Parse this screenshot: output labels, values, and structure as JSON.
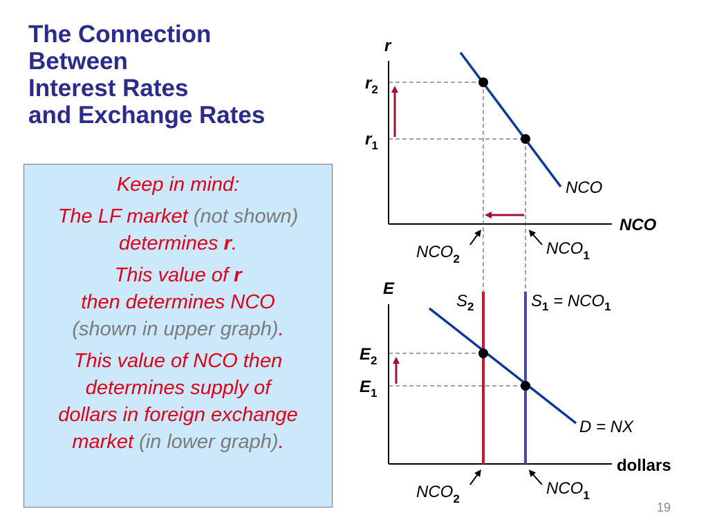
{
  "title": {
    "line1": "The Connection",
    "line2": "Between",
    "line3": "Interest Rates",
    "line4": "and Exchange Rates"
  },
  "note": {
    "heading": "Keep in mind:",
    "p1_a": "The LF market",
    "p1_b": "(not shown)",
    "p1_c": "determines",
    "p1_r": "r",
    "p1_dot": ".",
    "p2_a": "This value of",
    "p2_r": "r",
    "p2_b": "then determines NCO",
    "p2_c": "(shown in upper graph)",
    "p2_dot": ".",
    "p3_a": "This value of NCO then",
    "p3_b": "determines supply of",
    "p3_c": "dollars in foreign exchange",
    "p3_d": "market",
    "p3_e": "(in lower graph)",
    "p3_dot": "."
  },
  "upper_graph": {
    "y_axis_label": "r",
    "x_axis_label": "NCO",
    "curve_label": "NCO",
    "r2": "r",
    "r2_sub": "2",
    "r1": "r",
    "r1_sub": "1",
    "nco2": "NCO",
    "nco2_sub": "2",
    "nco1": "NCO",
    "nco1_sub": "1"
  },
  "lower_graph": {
    "y_axis_label": "E",
    "x_axis_label": "dollars",
    "s2": "S",
    "s2_sub": "2",
    "s1": "S",
    "s1_sub": "1",
    "s1_eq": " = NCO",
    "s1_eq_sub": "1",
    "e2": "E",
    "e2_sub": "2",
    "e1": "E",
    "e1_sub": "1",
    "demand_label": "D = NX",
    "nco2": "NCO",
    "nco2_sub": "2",
    "nco1": "NCO",
    "nco1_sub": "1"
  },
  "colors": {
    "title": "#2b2b8c",
    "curve": "#0b3a9c",
    "arrow": "#a0102a",
    "supply2": "#d8102a",
    "supply1": "#4848a8",
    "box_bg": "#cce9fb",
    "note_red": "#e0001b",
    "note_gray": "#7a7a7a"
  },
  "page_number": "19"
}
